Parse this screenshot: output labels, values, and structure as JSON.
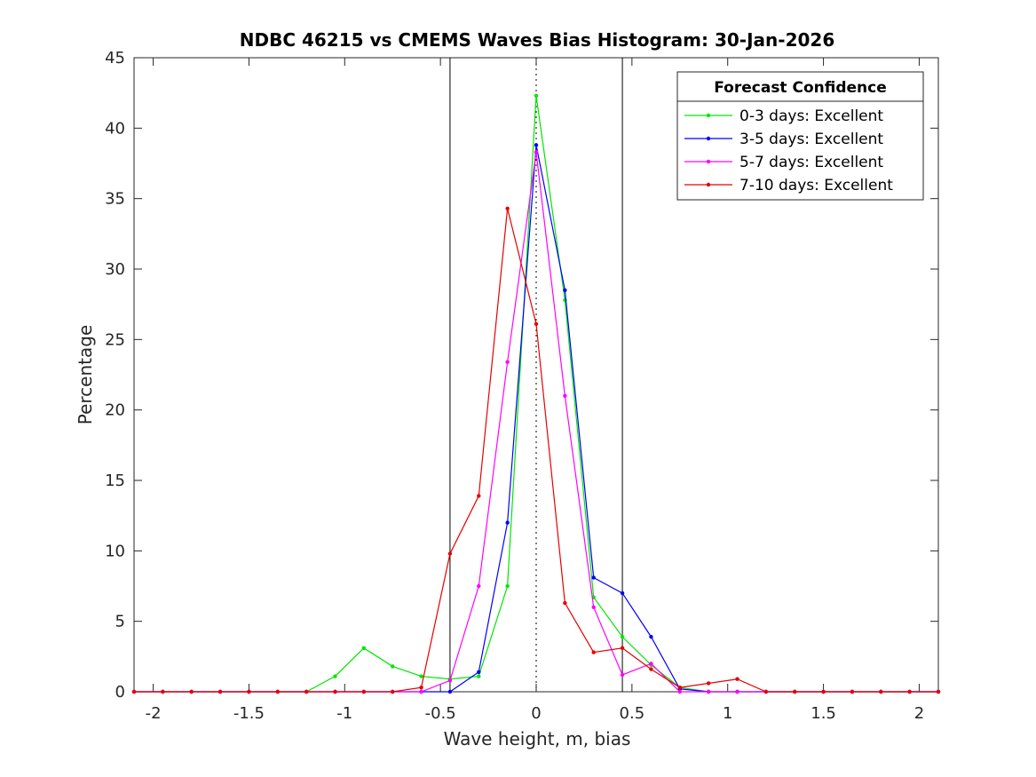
{
  "chart_data": {
    "type": "line",
    "title": "NDBC 46215 vs CMEMS Waves Bias Histogram: 30-Jan-2026",
    "xlabel": "Wave height, m, bias",
    "ylabel": "Percentage",
    "xlim": [
      -2.1,
      2.1
    ],
    "ylim": [
      0,
      45
    ],
    "xticks": [
      -2,
      -1.5,
      -1,
      -0.5,
      0,
      0.5,
      1,
      1.5,
      2
    ],
    "xtick_labels": [
      "-2",
      "-1.5",
      "-1",
      "-0.5",
      "0",
      "0.5",
      "1",
      "1.5",
      "2"
    ],
    "yticks": [
      0,
      5,
      10,
      15,
      20,
      25,
      30,
      35,
      40,
      45
    ],
    "ytick_labels": [
      "0",
      "5",
      "10",
      "15",
      "20",
      "25",
      "30",
      "35",
      "40",
      "45"
    ],
    "reference_lines": {
      "solid": [
        -0.45,
        0.45
      ],
      "dotted": [
        0
      ]
    },
    "x": [
      -2.1,
      -1.95,
      -1.8,
      -1.65,
      -1.5,
      -1.35,
      -1.2,
      -1.05,
      -0.9,
      -0.75,
      -0.6,
      -0.45,
      -0.3,
      -0.15,
      0,
      0.15,
      0.3,
      0.45,
      0.6,
      0.75,
      0.9,
      1.05,
      1.2,
      1.35,
      1.5,
      1.65,
      1.8,
      1.95,
      2.1
    ],
    "legend": {
      "title": "Forecast Confidence",
      "position": "top-right"
    },
    "series": [
      {
        "name": "0-3 days: Excellent",
        "color": "#00e600",
        "values": [
          0,
          0,
          0,
          0,
          0,
          0,
          0,
          1.1,
          3.1,
          1.8,
          1.1,
          0.9,
          1.1,
          7.5,
          42.3,
          27.8,
          6.7,
          3.9,
          1.9,
          0.3,
          0,
          0,
          0,
          0,
          0,
          0,
          0,
          0,
          0
        ]
      },
      {
        "name": "3-5 days: Excellent",
        "color": "#0000ff",
        "values": [
          0,
          0,
          0,
          0,
          0,
          0,
          0,
          0,
          0,
          0,
          0,
          0,
          1.4,
          12,
          38.8,
          28.5,
          8.1,
          7,
          3.9,
          0.2,
          0,
          0,
          0,
          0,
          0,
          0,
          0,
          0,
          0
        ]
      },
      {
        "name": "5-7 days: Excellent",
        "color": "#ff00ff",
        "values": [
          0,
          0,
          0,
          0,
          0,
          0,
          0,
          0,
          0,
          0,
          0,
          0.8,
          7.5,
          23.4,
          38.3,
          21,
          6,
          1.2,
          2,
          0,
          0,
          0,
          0,
          0,
          0,
          0,
          0,
          0,
          0
        ]
      },
      {
        "name": "7-10 days: Excellent",
        "color": "#e60000",
        "values": [
          0,
          0,
          0,
          0,
          0,
          0,
          0,
          0,
          0,
          0,
          0.3,
          9.8,
          13.9,
          34.3,
          26.1,
          6.3,
          2.8,
          3.1,
          1.6,
          0.3,
          0.6,
          0.9,
          0,
          0,
          0,
          0,
          0,
          0,
          0
        ]
      }
    ]
  }
}
